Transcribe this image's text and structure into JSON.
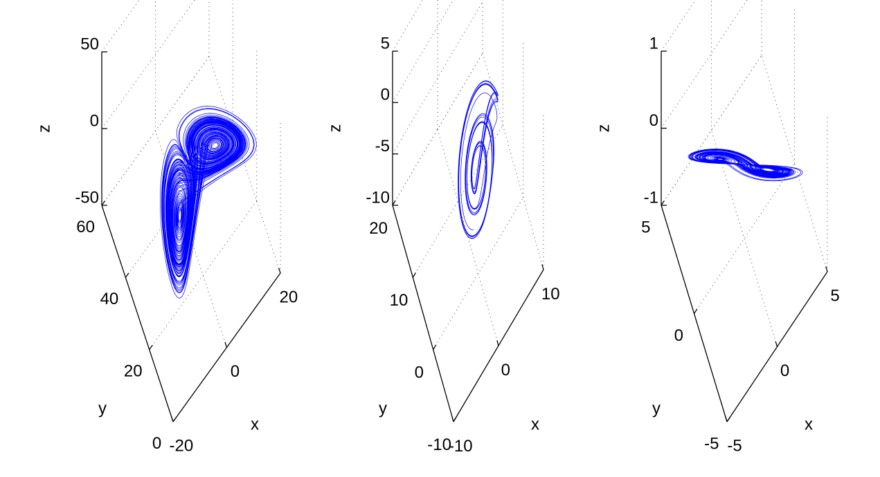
{
  "chart_data": [
    {
      "type": "line3d",
      "color": "#0000ff",
      "xlabel": "x",
      "ylabel": "y",
      "zlabel": "z",
      "xlim": [
        -20,
        20
      ],
      "xticks": [
        -20,
        0,
        20
      ],
      "ylim": [
        0,
        60
      ],
      "yticks": [
        0,
        20,
        40,
        60
      ],
      "zlim": [
        -50,
        50
      ],
      "zticks": [
        -50,
        0,
        50
      ],
      "grid": true
    },
    {
      "type": "line3d",
      "color": "#0000ff",
      "xlabel": "x",
      "ylabel": "y",
      "zlabel": "z",
      "xlim": [
        -10,
        10
      ],
      "xticks": [
        -10,
        0,
        10
      ],
      "ylim": [
        -10,
        20
      ],
      "yticks": [
        -10,
        0,
        10,
        20
      ],
      "zlim": [
        -10,
        5
      ],
      "zticks": [
        -10,
        -5,
        0,
        5
      ],
      "grid": true
    },
    {
      "type": "line3d",
      "color": "#0000ff",
      "xlabel": "x",
      "ylabel": "y",
      "zlabel": "z",
      "xlim": [
        -5,
        5
      ],
      "xticks": [
        -5,
        0,
        5
      ],
      "ylim": [
        -5,
        5
      ],
      "yticks": [
        -5,
        0,
        5
      ],
      "zlim": [
        -1,
        1
      ],
      "zticks": [
        -1,
        0,
        1
      ],
      "grid": true
    }
  ]
}
